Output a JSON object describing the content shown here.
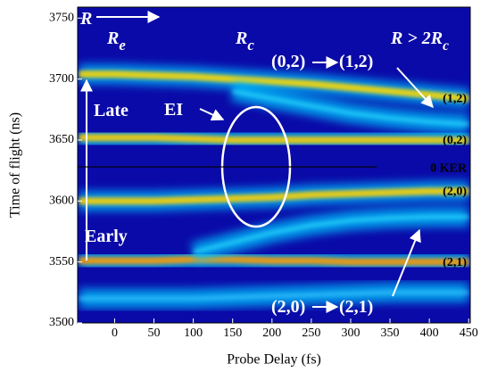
{
  "chart_data": {
    "type": "heatmap-bands",
    "x_label": "Probe Delay (fs)",
    "y_label": "Time of flight (ns)",
    "xlim": [
      -47,
      452
    ],
    "ylim": [
      3500,
      3759
    ],
    "xticks": [
      0,
      50,
      100,
      150,
      200,
      250,
      300,
      350,
      400,
      450
    ],
    "yticks": [
      3500,
      3550,
      3600,
      3650,
      3700,
      3750
    ],
    "background": "#0a0aa8",
    "x": [
      -45,
      0,
      50,
      100,
      150,
      200,
      250,
      300,
      350,
      400,
      450
    ],
    "series": [
      {
        "name": "(1,2)",
        "color": "#ffd800",
        "values": [
          3704,
          3704,
          3703,
          3702,
          3700,
          3698,
          3696,
          3693,
          3690,
          3687,
          3684
        ]
      },
      {
        "name": "(0,2)",
        "color": "#ffcc00",
        "values": [
          3652,
          3652,
          3652,
          3651,
          3650,
          3650,
          3650,
          3650,
          3650,
          3650,
          3650
        ]
      },
      {
        "name": "(2,0)",
        "color": "#ffd000",
        "values": [
          3600,
          3600,
          3600,
          3601,
          3602,
          3603,
          3605,
          3606,
          3607,
          3608,
          3608
        ]
      },
      {
        "name": "(2,1)",
        "color": "#ff9a00",
        "values": [
          3551,
          3551,
          3551,
          3552,
          3552,
          3551,
          3551,
          3550,
          3550,
          3550,
          3550
        ]
      },
      {
        "color": "#30e0ff",
        "values": [
          null,
          null,
          null,
          3558,
          3566,
          3574,
          3580,
          3584,
          3586,
          3587,
          3587
        ]
      },
      {
        "color": "#30e0ff",
        "values": [
          null,
          null,
          null,
          null,
          3690,
          3684,
          3678,
          3672,
          3668,
          3665,
          3663
        ]
      },
      {
        "color": "#40c8ff",
        "values": [
          3520,
          3520,
          3520,
          3520,
          3521,
          3522,
          3523,
          3524,
          3525,
          3525,
          3525
        ]
      }
    ],
    "zero_ker": {
      "label": "0 KER",
      "y": 3628
    },
    "annotations": [
      {
        "text": "R"
      },
      {
        "text": "R",
        "sub": "e"
      },
      {
        "text": "R",
        "sub": "c"
      },
      {
        "text": "R > 2R",
        "sub": "c"
      },
      {
        "text": "(0,2)"
      },
      {
        "text": "(1,2)"
      },
      {
        "text": "Late"
      },
      {
        "text": "EI"
      },
      {
        "text": "Early"
      },
      {
        "text": "(2,0)"
      },
      {
        "text": "(2,1)"
      }
    ]
  }
}
